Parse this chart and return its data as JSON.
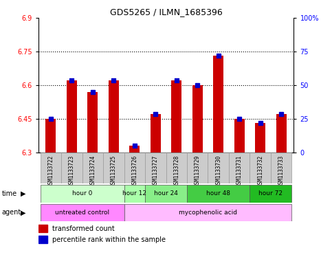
{
  "title": "GDS5265 / ILMN_1685396",
  "samples": [
    "GSM1133722",
    "GSM1133723",
    "GSM1133724",
    "GSM1133725",
    "GSM1133726",
    "GSM1133727",
    "GSM1133728",
    "GSM1133729",
    "GSM1133730",
    "GSM1133731",
    "GSM1133732",
    "GSM1133733"
  ],
  "red_values": [
    6.45,
    6.62,
    6.57,
    6.62,
    6.33,
    6.47,
    6.62,
    6.6,
    6.73,
    6.45,
    6.43,
    6.47
  ],
  "blue_percentiles": [
    25,
    50,
    43,
    50,
    5,
    30,
    50,
    48,
    62,
    25,
    27,
    30
  ],
  "ylim_left": [
    6.3,
    6.9
  ],
  "ylim_right": [
    0,
    100
  ],
  "yticks_left": [
    6.3,
    6.45,
    6.6,
    6.75,
    6.9
  ],
  "ytick_labels_left": [
    "6.3",
    "6.45",
    "6.6",
    "6.75",
    "6.9"
  ],
  "yticks_right": [
    0,
    25,
    50,
    75,
    100
  ],
  "ytick_labels_right": [
    "0",
    "25",
    "50",
    "75",
    "100%"
  ],
  "bar_width": 0.5,
  "bar_bottom": 6.3,
  "time_groups": [
    {
      "label": "hour 0",
      "start": 0,
      "end": 3,
      "color": "#ccffcc"
    },
    {
      "label": "hour 12",
      "start": 4,
      "end": 4,
      "color": "#aaffaa"
    },
    {
      "label": "hour 24",
      "start": 5,
      "end": 6,
      "color": "#88ee88"
    },
    {
      "label": "hour 48",
      "start": 7,
      "end": 9,
      "color": "#44cc44"
    },
    {
      "label": "hour 72",
      "start": 10,
      "end": 11,
      "color": "#22bb22"
    }
  ],
  "agent_groups": [
    {
      "label": "untreated control",
      "start": 0,
      "end": 3,
      "color": "#ff88ff"
    },
    {
      "label": "mycophenolic acid",
      "start": 4,
      "end": 11,
      "color": "#ffbbff"
    }
  ],
  "legend_red_label": "transformed count",
  "legend_blue_label": "percentile rank within the sample",
  "red_color": "#cc0000",
  "blue_color": "#0000cc",
  "sample_bg": "#cccccc"
}
